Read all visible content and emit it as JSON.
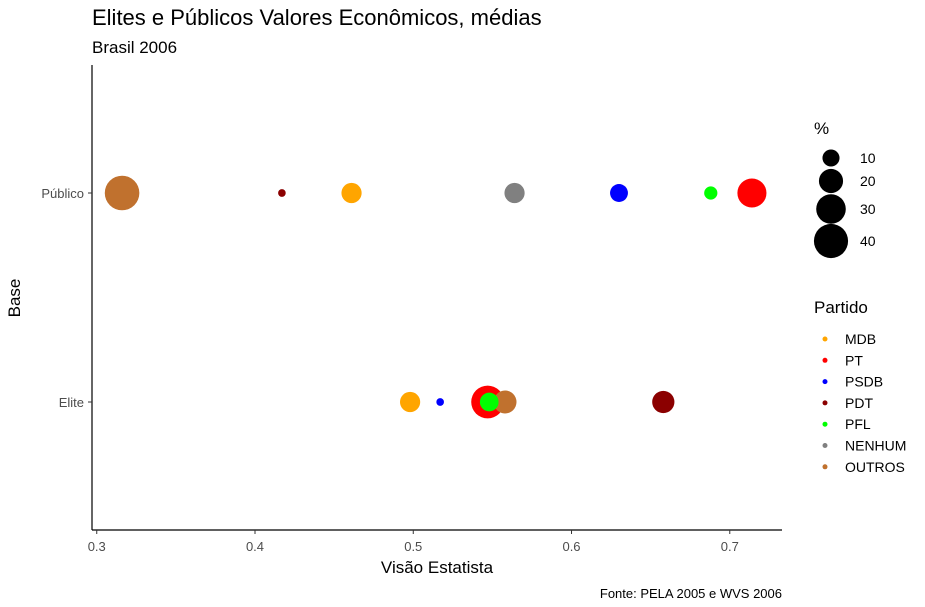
{
  "chart_data": {
    "type": "scatter",
    "title": "Elites e Públicos Valores Econômicos, médias",
    "subtitle": "Brasil 2006",
    "xlabel": "Visão Estatista",
    "ylabel": "Base",
    "caption": "Fonte: PELA 2005 e WVS 2006",
    "xlim": [
      0.297,
      0.733
    ],
    "x_ticks": [
      "0.3",
      "0.4",
      "0.5",
      "0.6",
      "0.7"
    ],
    "y_categories": [
      "Elite",
      "Público"
    ],
    "grid": false,
    "legend_placement": "right",
    "size_legend": {
      "title": "%",
      "values": [
        10,
        20,
        30,
        40
      ],
      "labels": [
        "10",
        "20",
        "30",
        "40"
      ]
    },
    "color_legend": {
      "title": "Partido",
      "entries": [
        {
          "label": "MDB",
          "color": "#FFA500"
        },
        {
          "label": "PT",
          "color": "#FF0000"
        },
        {
          "label": "PSDB",
          "color": "#0000FF"
        },
        {
          "label": "PDT",
          "color": "#8B0000"
        },
        {
          "label": "PFL",
          "color": "#00FF00"
        },
        {
          "label": "NENHUM",
          "color": "#808080"
        },
        {
          "label": "OUTROS",
          "color": "#C0712E"
        }
      ]
    },
    "points": [
      {
        "base": "Público",
        "partido": "OUTROS",
        "x": 0.316,
        "pct": 41
      },
      {
        "base": "Público",
        "partido": "PDT",
        "x": 0.417,
        "pct": 2
      },
      {
        "base": "Público",
        "partido": "MDB",
        "x": 0.461,
        "pct": 14
      },
      {
        "base": "Público",
        "partido": "NENHUM",
        "x": 0.564,
        "pct": 14
      },
      {
        "base": "Público",
        "partido": "PSDB",
        "x": 0.63,
        "pct": 11
      },
      {
        "base": "Público",
        "partido": "PFL",
        "x": 0.688,
        "pct": 6
      },
      {
        "base": "Público",
        "partido": "PT",
        "x": 0.714,
        "pct": 29
      },
      {
        "base": "Elite",
        "partido": "MDB",
        "x": 0.498,
        "pct": 14
      },
      {
        "base": "Elite",
        "partido": "PSDB",
        "x": 0.517,
        "pct": 2
      },
      {
        "base": "Elite",
        "partido": "PT",
        "x": 0.547,
        "pct": 37
      },
      {
        "base": "Elite",
        "partido": "OUTROS",
        "x": 0.558,
        "pct": 18
      },
      {
        "base": "Elite",
        "partido": "PFL",
        "x": 0.548,
        "pct": 12
      },
      {
        "base": "Elite",
        "partido": "PDT",
        "x": 0.658,
        "pct": 17
      }
    ]
  }
}
